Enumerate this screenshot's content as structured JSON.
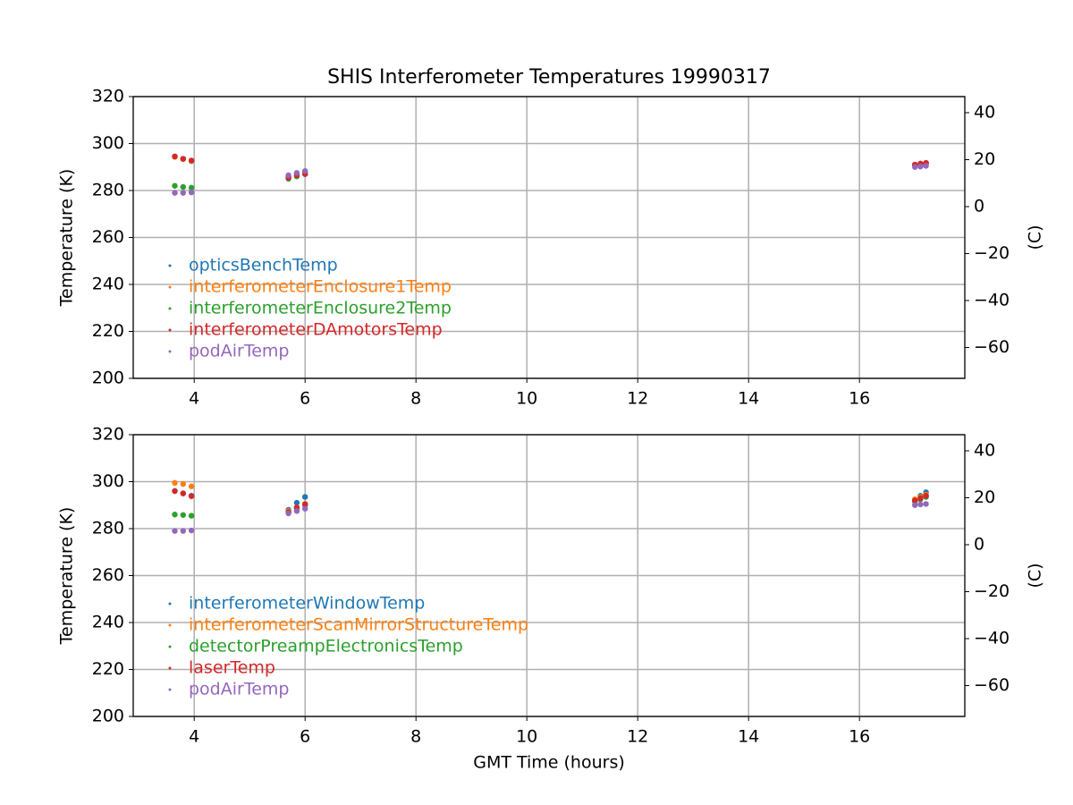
{
  "chart_data": [
    {
      "type": "scatter",
      "title": "SHIS Interferometer Temperatures 19990317",
      "ylabel": "Temperature (K)",
      "y2label": "(C)",
      "x": [
        3.65,
        3.8,
        3.95,
        5.7,
        5.85,
        6.0,
        17.0,
        17.1,
        17.2
      ],
      "series": [
        {
          "name": "opticsBenchTemp",
          "color": "#1f77b4",
          "values": [
            294.5,
            293.5,
            292.5,
            286,
            287,
            288,
            291,
            291.3,
            291.5
          ]
        },
        {
          "name": "interferometerEnclosure1Temp",
          "color": "#ff7f0e",
          "values": [
            294.3,
            293.4,
            292.6,
            285.5,
            286.5,
            287.2,
            290.8,
            291.2,
            291.5
          ]
        },
        {
          "name": "interferometerEnclosure2Temp",
          "color": "#2ca02c",
          "values": [
            282,
            281.5,
            281.2,
            285,
            286,
            287,
            291,
            291.3,
            291.5
          ]
        },
        {
          "name": "interferometerDAmotorsTemp",
          "color": "#d62728",
          "values": [
            294.5,
            293.5,
            292.8,
            285.5,
            286.5,
            287,
            291,
            291.5,
            291.8
          ]
        },
        {
          "name": "podAirTemp",
          "color": "#9467bd",
          "values": [
            279,
            279,
            279.2,
            286.5,
            287.5,
            288.3,
            290,
            290.2,
            290.5
          ]
        }
      ],
      "xlim": [
        2.9,
        17.9
      ],
      "xticks": [
        4,
        6,
        8,
        10,
        12,
        14,
        16
      ],
      "ylim": [
        200,
        320
      ],
      "yticks": [
        200,
        220,
        240,
        260,
        280,
        300,
        320
      ],
      "y2lim": [
        -73.15,
        46.85
      ],
      "y2ticks": [
        {
          "value": -60,
          "label": "−60"
        },
        {
          "value": -40,
          "label": "−40"
        },
        {
          "value": -20,
          "label": "−20"
        },
        0,
        20,
        40
      ],
      "grid": true,
      "legend": "center left"
    },
    {
      "type": "scatter",
      "ylabel": "Temperature (K)",
      "y2label": "(C)",
      "xlabel": "GMT Time (hours)",
      "x": [
        3.65,
        3.8,
        3.95,
        5.7,
        5.85,
        6.0,
        17.0,
        17.1,
        17.2
      ],
      "series": [
        {
          "name": "interferometerWindowTemp",
          "color": "#1f77b4",
          "values": [
            296,
            295,
            294,
            288,
            291,
            293.5,
            292,
            294,
            295.5
          ]
        },
        {
          "name": "interferometerScanMirrorStructureTemp",
          "color": "#ff7f0e",
          "values": [
            299.5,
            299,
            298,
            287.5,
            289,
            290,
            292.5,
            293.5,
            294.5
          ]
        },
        {
          "name": "detectorPreampElectronicsTemp",
          "color": "#2ca02c",
          "values": [
            286,
            285.8,
            285.5,
            287,
            288.5,
            290,
            291.5,
            292.5,
            293.5
          ]
        },
        {
          "name": "laserTemp",
          "color": "#d62728",
          "values": [
            296,
            295,
            293.8,
            287,
            289,
            290.5,
            292,
            293,
            294
          ]
        },
        {
          "name": "podAirTemp",
          "color": "#9467bd",
          "values": [
            279,
            279,
            279.2,
            286.5,
            287.5,
            288.5,
            290,
            290.3,
            290.5
          ]
        }
      ],
      "xlim": [
        2.9,
        17.9
      ],
      "xticks": [
        4,
        6,
        8,
        10,
        12,
        14,
        16
      ],
      "ylim": [
        200,
        320
      ],
      "yticks": [
        200,
        220,
        240,
        260,
        280,
        300,
        320
      ],
      "y2lim": [
        -73.15,
        46.85
      ],
      "y2ticks": [
        {
          "value": -60,
          "label": "−60"
        },
        {
          "value": -40,
          "label": "−40"
        },
        {
          "value": -20,
          "label": "−20"
        },
        0,
        20,
        40
      ],
      "grid": true,
      "legend": "center left"
    }
  ]
}
